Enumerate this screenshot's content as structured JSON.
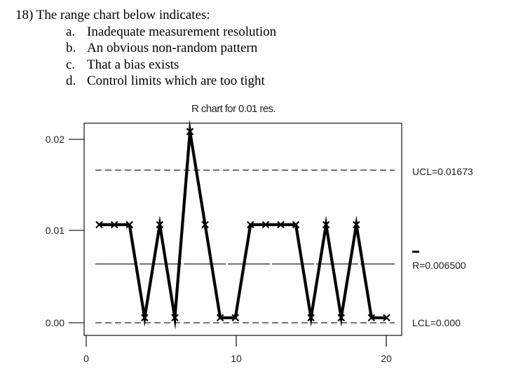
{
  "question": {
    "stem": "18) The range chart below indicates:",
    "options": [
      {
        "letter": "a.",
        "text": "Inadequate measurement resolution"
      },
      {
        "letter": "b.",
        "text": "An obvious non-random pattern"
      },
      {
        "letter": "c.",
        "text": "That a bias exists"
      },
      {
        "letter": "d.",
        "text": "Control limits which are too tight"
      }
    ]
  },
  "chart_data": {
    "type": "line",
    "title": "R chart for 0.01 res.",
    "x": [
      1,
      2,
      3,
      4,
      5,
      6,
      7,
      8,
      9,
      10,
      11,
      12,
      13,
      14,
      15,
      16,
      17,
      18,
      19,
      20
    ],
    "values": [
      0.01,
      0.01,
      0.01,
      0,
      0.01,
      0,
      0.02,
      0.01,
      0,
      0,
      0.01,
      0.01,
      0.01,
      0.01,
      0,
      0.01,
      0,
      0.01,
      0,
      0
    ],
    "xticks": [
      "0",
      "10",
      "20"
    ],
    "yticks": [
      "0.00",
      "0.01",
      "0.02"
    ],
    "xlim": [
      0,
      21
    ],
    "ylim": [
      -0.0019,
      0.0209
    ],
    "control_lines": {
      "ucl": {
        "value": 0.01673,
        "label": "UCL=0.01673"
      },
      "center": {
        "value": 0.0065,
        "label": "R=0.006500"
      },
      "lcl": {
        "value": 0,
        "label": "LCL=0.000"
      }
    },
    "grid": false,
    "series_color": "#000000"
  }
}
